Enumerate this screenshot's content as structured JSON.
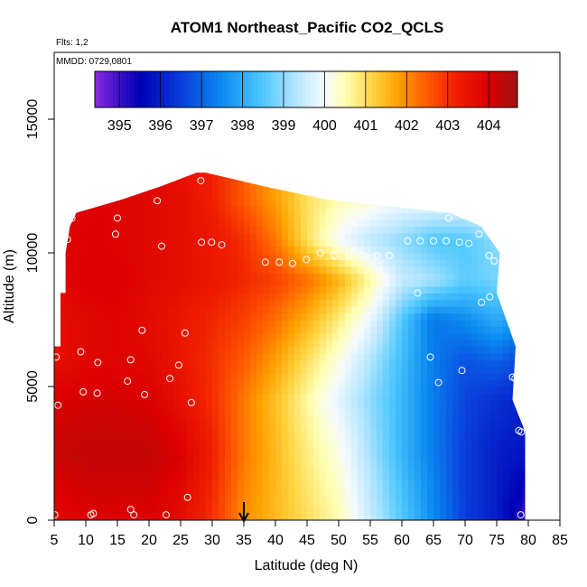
{
  "chart_data": {
    "type": "heatmap",
    "title": "ATOM1 Northeast_Pacific CO2_QCLS",
    "notes": [
      "Flts: 1,2",
      "MMDD: 0729,0801"
    ],
    "xlabel": "Latitude (deg N)",
    "ylabel": "Altitude (m)",
    "xlim": [
      5,
      85
    ],
    "ylim": [
      0,
      17500
    ],
    "x_ticks": [
      5,
      10,
      15,
      20,
      25,
      30,
      35,
      40,
      45,
      50,
      55,
      60,
      65,
      70,
      75,
      80,
      85
    ],
    "y_ticks": [
      0,
      5000,
      10000,
      15000
    ],
    "x_tick_labels": [
      "5",
      "10",
      "15",
      "20",
      "25",
      "30",
      "35",
      "40",
      "45",
      "50",
      "55",
      "60",
      "65",
      "70",
      "75",
      "80",
      "85"
    ],
    "y_tick_labels": [
      "0",
      "5000",
      "10000",
      "15000"
    ],
    "colorbar": {
      "min": 394.4,
      "max": 404.7,
      "ticks": [
        395,
        396,
        397,
        398,
        399,
        400,
        401,
        402,
        403,
        404
      ],
      "tick_labels": [
        "395",
        "396",
        "397",
        "398",
        "399",
        "400",
        "401",
        "402",
        "403",
        "404"
      ],
      "position": "top",
      "stops": [
        {
          "v": 394.4,
          "c": "#8a2be2"
        },
        {
          "v": 395.0,
          "c": "#3a10c8"
        },
        {
          "v": 395.5,
          "c": "#0000b4"
        },
        {
          "v": 396.5,
          "c": "#0a3cdc"
        },
        {
          "v": 397.5,
          "c": "#0a8cf0"
        },
        {
          "v": 398.5,
          "c": "#50c8ff"
        },
        {
          "v": 399.3,
          "c": "#b4e6ff"
        },
        {
          "v": 400.0,
          "c": "#f5faff"
        },
        {
          "v": 400.5,
          "c": "#ffffb4"
        },
        {
          "v": 401.2,
          "c": "#ffd23c"
        },
        {
          "v": 401.8,
          "c": "#ffa000"
        },
        {
          "v": 402.5,
          "c": "#ff5a00"
        },
        {
          "v": 403.2,
          "c": "#f01e00"
        },
        {
          "v": 404.0,
          "c": "#dc0000"
        },
        {
          "v": 404.7,
          "c": "#a01414"
        }
      ]
    },
    "grid": false,
    "marker": {
      "type": "arrow",
      "x": 35
    },
    "field": {
      "lat_lines": [
        5,
        10,
        15,
        20,
        25,
        30,
        35,
        40,
        45,
        50,
        55,
        60,
        65,
        70,
        75,
        80
      ],
      "profiles": [
        {
          "alt": 250,
          "values": [
            403.8,
            404.0,
            404.0,
            404.0,
            403.7,
            403.0,
            402.0,
            401.5,
            401.0,
            400.5,
            399.5,
            398.5,
            397.5,
            396.5,
            396.0,
            395.0
          ]
        },
        {
          "alt": 2500,
          "values": [
            404.2,
            404.3,
            404.3,
            404.3,
            404.0,
            403.2,
            402.2,
            401.5,
            400.8,
            400.2,
            399.2,
            398.2,
            397.3,
            396.5,
            396.0,
            395.8
          ]
        },
        {
          "alt": 4500,
          "values": [
            404.0,
            404.1,
            404.1,
            404.0,
            403.6,
            403.0,
            402.2,
            401.4,
            400.6,
            399.8,
            399.0,
            398.2,
            397.3,
            396.6,
            396.3,
            396.0
          ]
        },
        {
          "alt": 6000,
          "values": [
            403.6,
            403.8,
            403.9,
            403.8,
            403.4,
            403.0,
            402.5,
            401.8,
            401.0,
            400.2,
            399.3,
            398.3,
            397.3,
            396.8,
            397.0,
            396.5
          ]
        },
        {
          "alt": 7500,
          "values": [
            403.6,
            403.8,
            403.9,
            403.7,
            403.4,
            403.1,
            402.8,
            402.3,
            401.6,
            400.8,
            399.9,
            398.5,
            397.2,
            397.5,
            398.0,
            397.5
          ]
        },
        {
          "alt": 9000,
          "values": [
            403.8,
            404.0,
            404.0,
            403.8,
            403.6,
            403.4,
            403.1,
            402.8,
            402.3,
            401.6,
            400.6,
            399.5,
            399.2,
            398.6,
            398.8,
            398.5
          ]
        },
        {
          "alt": 10500,
          "values": [
            404.0,
            404.0,
            403.9,
            403.8,
            403.6,
            403.4,
            403.0,
            402.2,
            401.0,
            400.0,
            399.4,
            399.0,
            398.5,
            398.5,
            399.0,
            399.0
          ]
        },
        {
          "alt": 12000,
          "values": [
            404.0,
            404.0,
            403.9,
            403.8,
            403.6,
            403.2,
            402.5,
            401.8,
            401.0,
            400.5,
            400.3,
            400.0,
            400.0,
            400.0,
            400.0,
            400.0
          ]
        }
      ],
      "boundary": [
        {
          "alt": 0,
          "lat_min": 5.0,
          "lat_max": 79.5
        },
        {
          "alt": 3300,
          "lat_min": 5.0,
          "lat_max": 79.5
        },
        {
          "alt": 4500,
          "lat_min": 5.0,
          "lat_max": 77.5
        },
        {
          "alt": 6500,
          "lat_min": 5.0,
          "lat_max": 78.0
        },
        {
          "alt": 6500,
          "lat_min": 6.0,
          "lat_max": 78.0
        },
        {
          "alt": 8500,
          "lat_min": 6.0,
          "lat_max": 75.0
        },
        {
          "alt": 8500,
          "lat_min": 6.8,
          "lat_max": 75.0
        },
        {
          "alt": 10000,
          "lat_min": 6.8,
          "lat_max": 75.5
        },
        {
          "alt": 11000,
          "lat_min": 7.5,
          "lat_max": 72.5
        },
        {
          "alt": 11500,
          "lat_min": 8.5,
          "lat_max": 67.5
        },
        {
          "alt": 12000,
          "lat_min": 15.8,
          "lat_max": 48.0
        },
        {
          "alt": 12500,
          "lat_min": 22.0,
          "lat_max": 38.0
        },
        {
          "alt": 13000,
          "lat_min": 27.5,
          "lat_max": 29.0
        }
      ]
    },
    "samples": [
      {
        "lat": 5.1,
        "alt": 200
      },
      {
        "lat": 10.8,
        "alt": 200
      },
      {
        "lat": 11.2,
        "alt": 250
      },
      {
        "lat": 17.1,
        "alt": 400
      },
      {
        "lat": 17.6,
        "alt": 200
      },
      {
        "lat": 22.7,
        "alt": 200
      },
      {
        "lat": 26.1,
        "alt": 850
      },
      {
        "lat": 5.6,
        "alt": 4300
      },
      {
        "lat": 26.7,
        "alt": 4400
      },
      {
        "lat": 9.6,
        "alt": 4800
      },
      {
        "lat": 11.8,
        "alt": 4750
      },
      {
        "lat": 19.3,
        "alt": 4700
      },
      {
        "lat": 16.6,
        "alt": 5200
      },
      {
        "lat": 23.3,
        "alt": 5300
      },
      {
        "lat": 11.9,
        "alt": 5900
      },
      {
        "lat": 17.1,
        "alt": 6000
      },
      {
        "lat": 24.7,
        "alt": 5800
      },
      {
        "lat": 5.3,
        "alt": 6100
      },
      {
        "lat": 9.2,
        "alt": 6300
      },
      {
        "lat": 18.9,
        "alt": 7100
      },
      {
        "lat": 25.7,
        "alt": 7000
      },
      {
        "lat": 7.1,
        "alt": 10500
      },
      {
        "lat": 7.8,
        "alt": 11300
      },
      {
        "lat": 14.7,
        "alt": 10700
      },
      {
        "lat": 15.0,
        "alt": 11300
      },
      {
        "lat": 21.3,
        "alt": 11950
      },
      {
        "lat": 28.2,
        "alt": 12700
      },
      {
        "lat": 22.0,
        "alt": 10250
      },
      {
        "lat": 28.3,
        "alt": 10400
      },
      {
        "lat": 29.9,
        "alt": 10400
      },
      {
        "lat": 31.5,
        "alt": 10300
      },
      {
        "lat": 38.4,
        "alt": 9650
      },
      {
        "lat": 40.6,
        "alt": 9650
      },
      {
        "lat": 42.7,
        "alt": 9600
      },
      {
        "lat": 44.9,
        "alt": 9750
      },
      {
        "lat": 47.1,
        "alt": 10000
      },
      {
        "lat": 49.3,
        "alt": 9900
      },
      {
        "lat": 51.6,
        "alt": 9900
      },
      {
        "lat": 53.8,
        "alt": 9900
      },
      {
        "lat": 56.0,
        "alt": 9900
      },
      {
        "lat": 58.0,
        "alt": 9900
      },
      {
        "lat": 60.9,
        "alt": 10450
      },
      {
        "lat": 62.9,
        "alt": 10450
      },
      {
        "lat": 65.0,
        "alt": 10450
      },
      {
        "lat": 67.0,
        "alt": 10450
      },
      {
        "lat": 69.1,
        "alt": 10400
      },
      {
        "lat": 70.6,
        "alt": 10350
      },
      {
        "lat": 72.2,
        "alt": 10700
      },
      {
        "lat": 67.4,
        "alt": 11300
      },
      {
        "lat": 73.8,
        "alt": 9900
      },
      {
        "lat": 74.6,
        "alt": 9700
      },
      {
        "lat": 62.5,
        "alt": 8500
      },
      {
        "lat": 72.6,
        "alt": 8150
      },
      {
        "lat": 73.9,
        "alt": 8350
      },
      {
        "lat": 64.5,
        "alt": 6100
      },
      {
        "lat": 69.5,
        "alt": 5600
      },
      {
        "lat": 65.8,
        "alt": 5150
      },
      {
        "lat": 77.5,
        "alt": 5350
      },
      {
        "lat": 77.9,
        "alt": 5300
      },
      {
        "lat": 78.5,
        "alt": 3350
      },
      {
        "lat": 78.9,
        "alt": 3300
      },
      {
        "lat": 78.8,
        "alt": 200
      }
    ]
  }
}
